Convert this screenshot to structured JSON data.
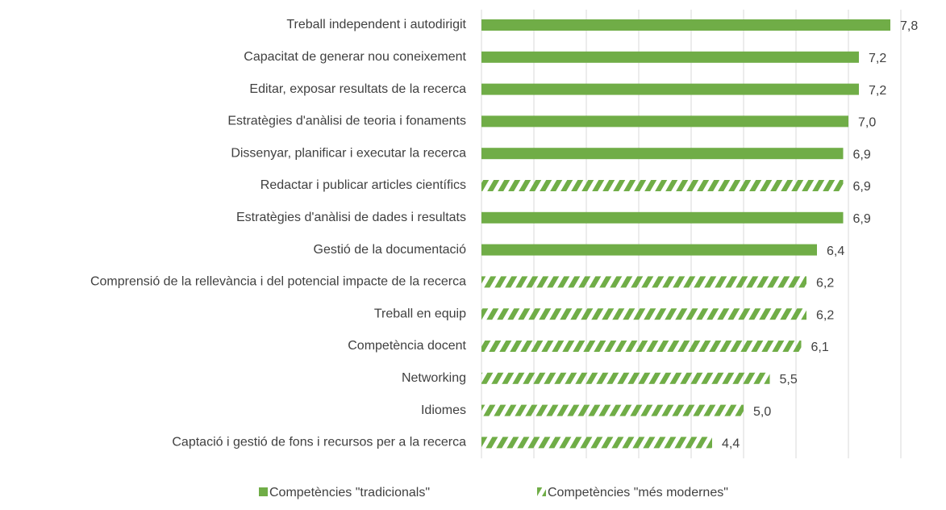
{
  "chart_data": {
    "type": "bar",
    "orientation": "horizontal",
    "categories": [
      "Treball independent i autodirigit",
      "Capacitat de generar nou coneixement",
      "Editar, exposar resultats de la recerca",
      "Estratègies d'anàlisi de teoria i fonaments",
      "Dissenyar, planificar i executar la recerca",
      "Redactar i publicar articles científics",
      "Estratègies d'anàlisi de dades i resultats",
      "Gestió de la documentació",
      "Comprensió de la rellevància i del potencial impacte de la recerca",
      "Treball en equip",
      "Competència docent",
      "Networking",
      "Idiomes",
      "Captació i gestió de fons i recursos per a la recerca"
    ],
    "series": [
      {
        "name": "Competències \"tradicionals\"",
        "color": "#70ad47",
        "pattern": "solid",
        "values": [
          7.8,
          7.2,
          7.2,
          7.0,
          6.9,
          null,
          6.9,
          6.4,
          null,
          null,
          null,
          null,
          null,
          null
        ],
        "value_labels": [
          "7,8",
          "7,2",
          "7,2",
          "7,0",
          "6,9",
          null,
          "6,9",
          "6,4",
          null,
          null,
          null,
          null,
          null,
          null
        ]
      },
      {
        "name": "Competències \"més modernes\"",
        "color": "#70ad47",
        "pattern": "hatch",
        "values": [
          null,
          null,
          null,
          null,
          null,
          6.9,
          null,
          null,
          6.2,
          6.2,
          6.1,
          5.5,
          5.0,
          4.4
        ],
        "value_labels": [
          null,
          null,
          null,
          null,
          null,
          "6,9",
          null,
          null,
          "6,2",
          "6,2",
          "6,1",
          "5,5",
          "5,0",
          "4,4"
        ]
      }
    ],
    "xlim": [
      0,
      8
    ],
    "xticks": [
      0,
      1,
      2,
      3,
      4,
      5,
      6,
      7,
      8
    ],
    "grid": true,
    "legend": "bottom"
  }
}
